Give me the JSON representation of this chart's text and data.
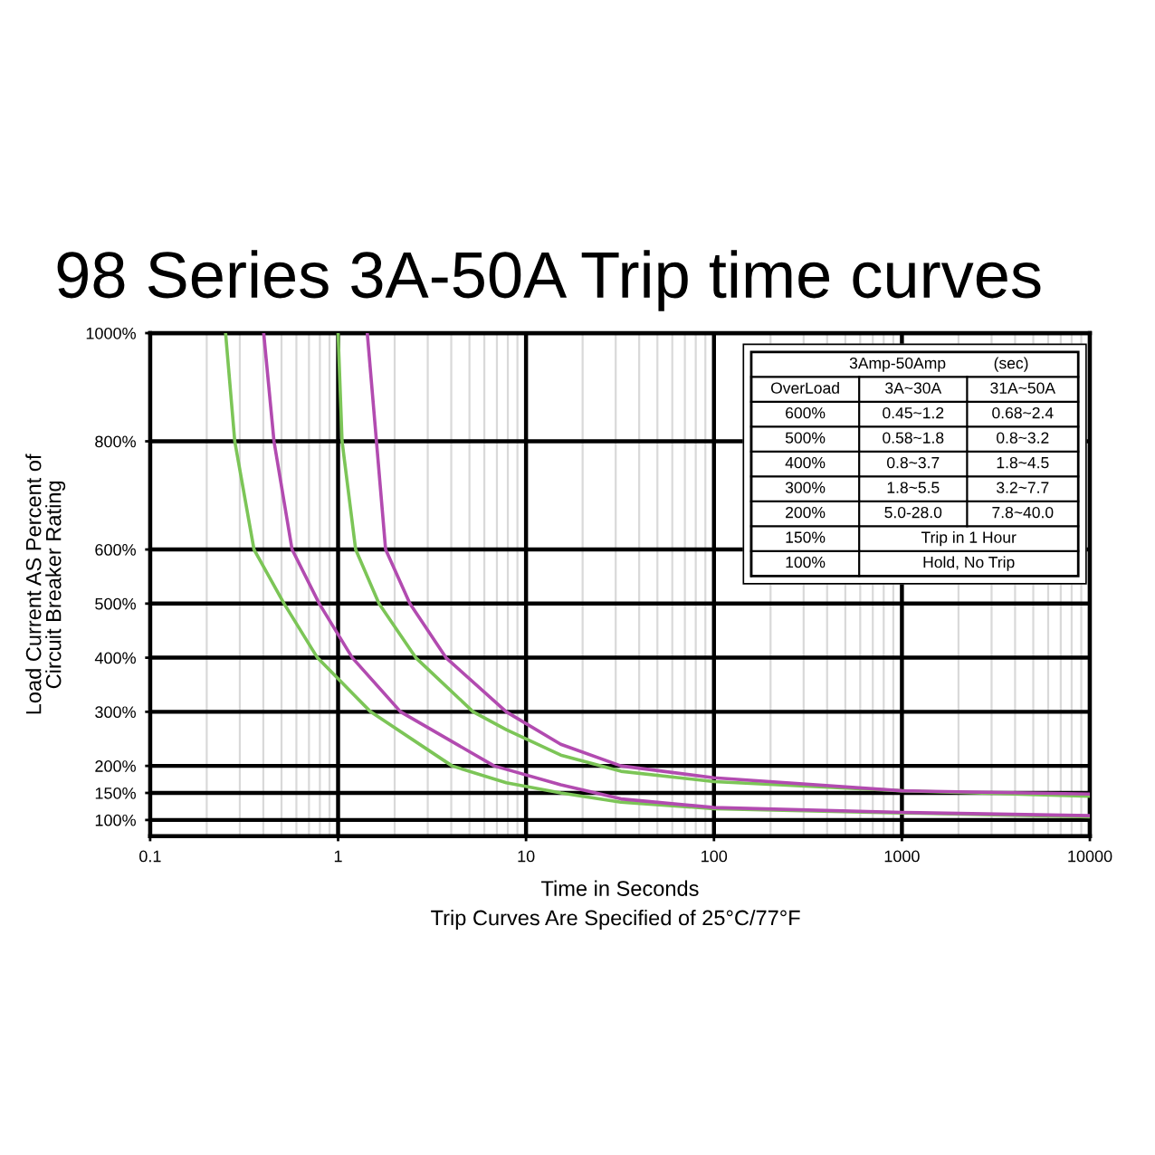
{
  "chart_data": [
    {
      "type": "line",
      "title": "98 Series 3A-50A Trip time curves",
      "xlabel": "Time in Seconds",
      "ylabel": "Load Current AS Percent of\nCircuit Breaker Rating",
      "annotations": [
        "Trip Curves Are Specified of 25°C/77°F"
      ],
      "log": "x",
      "grid": true,
      "xlim": [
        0.1,
        10000
      ],
      "xticks": [
        0.1,
        1,
        10,
        100,
        1000,
        10000
      ],
      "ylim": [
        70,
        1000
      ],
      "yticks": [
        {
          "value": 100,
          "label": "100%"
        },
        {
          "value": 150,
          "label": "150%"
        },
        {
          "value": 200,
          "label": "200%"
        },
        {
          "value": 300,
          "label": "300%"
        },
        {
          "value": 400,
          "label": "400%"
        },
        {
          "value": 500,
          "label": "500%"
        },
        {
          "value": 600,
          "label": "600%"
        },
        {
          "value": 800,
          "label": "800%"
        },
        {
          "value": 1000,
          "label": "1000%"
        }
      ],
      "series": [
        {
          "color": "#7cc557",
          "x": [
            0.252,
            0.282,
            0.357,
            0.516,
            0.776,
            1.49,
            4.04,
            7.85,
            15.3,
            32,
            100,
            1000,
            10000
          ],
          "values": [
            1000,
            800,
            600,
            500,
            400,
            300,
            200,
            169,
            150,
            133,
            121,
            113,
            106
          ]
        },
        {
          "color": "#b24bb0",
          "x": [
            0.402,
            0.456,
            0.569,
            0.794,
            1.19,
            2.15,
            6.76,
            15.3,
            32,
            100,
            1000,
            10000
          ],
          "values": [
            1000,
            800,
            600,
            500,
            400,
            300,
            200,
            165,
            139,
            123,
            114,
            108
          ]
        },
        {
          "color": "#7cc557",
          "x": [
            1.0,
            1.05,
            1.24,
            1.65,
            2.59,
            5.23,
            7.85,
            15.3,
            32,
            100,
            1000,
            10000
          ],
          "values": [
            1000,
            800,
            600,
            500,
            400,
            300,
            267,
            220,
            190,
            171,
            154,
            144
          ]
        },
        {
          "color": "#b24bb0",
          "x": [
            1.43,
            1.6,
            1.79,
            2.41,
            3.75,
            7.85,
            15.3,
            32,
            100,
            1000,
            10000
          ],
          "values": [
            1000,
            800,
            600,
            500,
            400,
            300,
            240,
            200,
            178,
            154,
            148
          ]
        }
      ]
    },
    {
      "type": "heatmap",
      "cells": [
        [
          null,
          null
        ],
        [
          null,
          null
        ],
        [
          null,
          null
        ],
        [
          null,
          null
        ],
        [
          null,
          null
        ],
        [
          null,
          null
        ],
        [
          null,
          null
        ]
      ],
      "title": "3Amp-50Amp",
      "subtitle": "(sec)",
      "ylabel": "OverLoad",
      "categories": [
        "3A~30A",
        "31A~50A"
      ],
      "y_categories": [
        "600%",
        "500%",
        "400%",
        "300%",
        "200%",
        "150%",
        "100%"
      ],
      "cell_labels": [
        [
          "0.45~1.2",
          "0.68~2.4"
        ],
        [
          "0.58~1.8",
          "0.8~3.2"
        ],
        [
          "0.8~3.7",
          "1.8~4.5"
        ],
        [
          "1.8~5.5",
          "3.2~7.7"
        ],
        [
          "5.0-28.0",
          "7.8~40.0"
        ],
        [
          "Trip in 1 Hour",
          null
        ],
        [
          "Hold, No Trip",
          null
        ]
      ]
    }
  ]
}
